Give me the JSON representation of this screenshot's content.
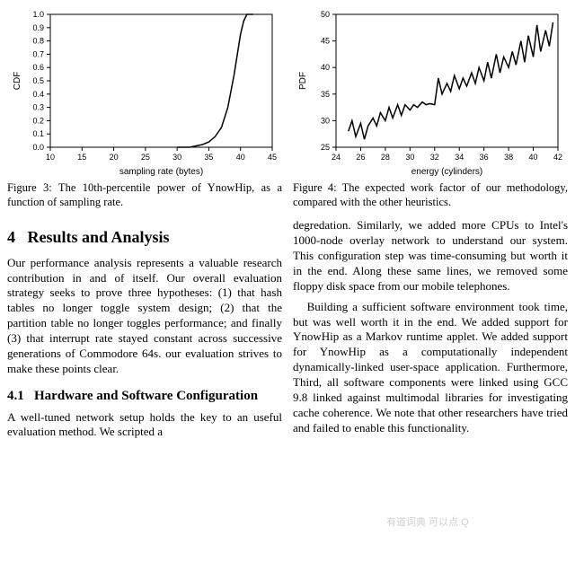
{
  "figure3": {
    "type": "line",
    "xlabel": "sampling rate (bytes)",
    "ylabel": "CDF",
    "xlim": [
      10,
      45
    ],
    "xtick_step": 5,
    "ylim": [
      0,
      1
    ],
    "ytick_step": 0.1,
    "label_fontsize": 10,
    "tick_fontsize": 9,
    "line_color": "#000000",
    "line_width": 1.5,
    "background_color": "#ffffff",
    "border_color": "#000000",
    "points": [
      [
        30,
        0.0
      ],
      [
        32,
        0.0
      ],
      [
        33,
        0.01
      ],
      [
        34,
        0.02
      ],
      [
        35,
        0.04
      ],
      [
        36,
        0.08
      ],
      [
        37,
        0.15
      ],
      [
        38,
        0.3
      ],
      [
        39,
        0.55
      ],
      [
        39.5,
        0.7
      ],
      [
        40,
        0.85
      ],
      [
        40.5,
        0.95
      ],
      [
        41,
        1.0
      ],
      [
        42,
        1.0
      ]
    ],
    "caption": "Figure 3:  The 10th-percentile power of YnowHip, as a function of sampling rate."
  },
  "figure4": {
    "type": "line",
    "xlabel": "energy (cylinders)",
    "ylabel": "PDF",
    "xlim": [
      24,
      42
    ],
    "xtick_step": 2,
    "ylim": [
      25,
      50
    ],
    "ytick_step": 5,
    "label_fontsize": 10,
    "tick_fontsize": 9,
    "line_color": "#000000",
    "line_width": 1.5,
    "background_color": "#ffffff",
    "border_color": "#000000",
    "points": [
      [
        25,
        28
      ],
      [
        25.3,
        30
      ],
      [
        25.6,
        27
      ],
      [
        26,
        29.5
      ],
      [
        26.3,
        26.5
      ],
      [
        26.6,
        29
      ],
      [
        27,
        30.5
      ],
      [
        27.3,
        29
      ],
      [
        27.6,
        31.5
      ],
      [
        28,
        30
      ],
      [
        28.3,
        32.5
      ],
      [
        28.6,
        30.5
      ],
      [
        29,
        33
      ],
      [
        29.3,
        31
      ],
      [
        29.6,
        33
      ],
      [
        30,
        32
      ],
      [
        30.3,
        33
      ],
      [
        30.6,
        32.5
      ],
      [
        31,
        33.5
      ],
      [
        31.3,
        33
      ],
      [
        31.6,
        33.2
      ],
      [
        32,
        33
      ],
      [
        32.3,
        38
      ],
      [
        32.6,
        35
      ],
      [
        33,
        37
      ],
      [
        33.3,
        35.5
      ],
      [
        33.6,
        38.5
      ],
      [
        34,
        36
      ],
      [
        34.3,
        38
      ],
      [
        34.6,
        36.5
      ],
      [
        35,
        39
      ],
      [
        35.3,
        37
      ],
      [
        35.6,
        40
      ],
      [
        36,
        37.5
      ],
      [
        36.3,
        41
      ],
      [
        36.6,
        38
      ],
      [
        37,
        42.5
      ],
      [
        37.3,
        39
      ],
      [
        37.6,
        42
      ],
      [
        38,
        40
      ],
      [
        38.3,
        43
      ],
      [
        38.6,
        40.5
      ],
      [
        39,
        45
      ],
      [
        39.3,
        41
      ],
      [
        39.6,
        46
      ],
      [
        40,
        42
      ],
      [
        40.3,
        48
      ],
      [
        40.6,
        43
      ],
      [
        41,
        47
      ],
      [
        41.3,
        44
      ],
      [
        41.6,
        48.5
      ]
    ],
    "caption": "Figure 4:  The expected work factor of our methodology, compared with the other heuristics."
  },
  "section": {
    "number": "4",
    "title": "Results and Analysis",
    "intro": "Our performance analysis represents a valuable research contribution in and of itself. Our overall evaluation strategy seeks to prove three hypotheses: (1) that hash tables no longer toggle system design; (2) that the partition table no longer toggles performance; and finally (3) that interrupt rate stayed constant across successive generations of Commodore 64s. our evaluation strives to make these points clear."
  },
  "subsection": {
    "number": "4.1",
    "title": "Hardware and Software Configuration",
    "para_left": "A well-tuned network setup holds the key to an useful evaluation method.  We scripted a",
    "para_right_top": "degredation.  Similarly, we added more CPUs to Intel's 1000-node overlay network to understand our system.  This configuration step was time-consuming but worth it in the end.  Along these same lines, we removed some floppy disk space from our mobile telephones.",
    "para_right_2": "Building a sufficient software environment took time, but was well worth it in the end. We added support for YnowHip as a Markov runtime applet.  We added support for YnowHip as a computationally independent dynamically-linked user-space application.   Furthermore, Third, all software components were linked using GCC 9.8 linked against multimodal libraries for investigating cache coherence. We note that other researchers have tried and failed to enable this functionality."
  },
  "watermark": "有道词典 可以点 Q"
}
